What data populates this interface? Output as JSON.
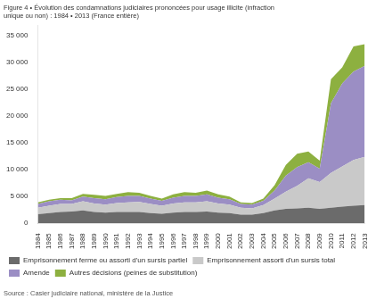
{
  "chart_data": {
    "type": "area",
    "stacked": true,
    "title": [
      "Figure 4 • Évolution des condamnations judiciaires prononcées pour usage illicite (infraction",
      "unique ou non) : 1984 • 2013 (France entière)"
    ],
    "annotations": [
      "Source : Casier judiciaire national, ministère de la Justice"
    ],
    "categories": [
      "1984",
      "1985",
      "1986",
      "1987",
      "1988",
      "1989",
      "1990",
      "1991",
      "1992",
      "1993",
      "1994",
      "1995",
      "1996",
      "1997",
      "1998",
      "1999",
      "2000",
      "2001",
      "2002",
      "2003",
      "2004",
      "2005",
      "2006",
      "2007",
      "2008",
      "2009",
      "2010",
      "2011",
      "2012",
      "2013"
    ],
    "series": [
      {
        "name": "Emprisonnement ferme ou assorti d'un sursis partiel",
        "color": "#6b6b6b",
        "values": [
          1700,
          1900,
          2100,
          2200,
          2400,
          2100,
          2000,
          2100,
          2100,
          2100,
          1900,
          1800,
          2000,
          2100,
          2100,
          2200,
          2000,
          1900,
          1600,
          1600,
          1900,
          2400,
          2700,
          2800,
          2900,
          2700,
          2900,
          3100,
          3300,
          3400
        ]
      },
      {
        "name": "Emprisonnement assorti d'un sursis total",
        "color": "#c9c9c9",
        "values": [
          1200,
          1400,
          1500,
          1400,
          1700,
          1600,
          1500,
          1700,
          1800,
          1900,
          1700,
          1500,
          1700,
          1800,
          1800,
          1900,
          1700,
          1600,
          1300,
          1200,
          1500,
          2200,
          3200,
          4200,
          5500,
          5000,
          6500,
          7500,
          8500,
          9000
        ]
      },
      {
        "name": "Amende",
        "color": "#9b8ec4",
        "values": [
          700,
          800,
          800,
          700,
          900,
          1000,
          1000,
          1100,
          1200,
          1100,
          1000,
          900,
          1100,
          1200,
          1200,
          1300,
          1100,
          1000,
          700,
          700,
          800,
          1500,
          3000,
          3500,
          3000,
          2500,
          13000,
          15500,
          16500,
          17000
        ]
      },
      {
        "name": "Autres décisions (peines de substitution)",
        "color": "#8db040",
        "values": [
          300,
          300,
          300,
          400,
          500,
          600,
          600,
          600,
          700,
          600,
          500,
          400,
          600,
          700,
          600,
          700,
          600,
          500,
          300,
          300,
          400,
          1000,
          2000,
          2500,
          2000,
          1500,
          4500,
          3000,
          4700,
          4000
        ]
      }
    ],
    "ylim": [
      0,
      37000
    ],
    "yticks": [
      0,
      {
        "value": 5000,
        "label": "5 000"
      },
      {
        "value": 10000,
        "label": "10 000"
      },
      {
        "value": 15000,
        "label": "15 000"
      },
      {
        "value": 20000,
        "label": "20 000"
      },
      {
        "value": 25000,
        "label": "25 000"
      },
      {
        "value": 30000,
        "label": "30 000"
      },
      {
        "value": 35000,
        "label": "35 000"
      }
    ],
    "grid": false,
    "legend": "bottom"
  }
}
